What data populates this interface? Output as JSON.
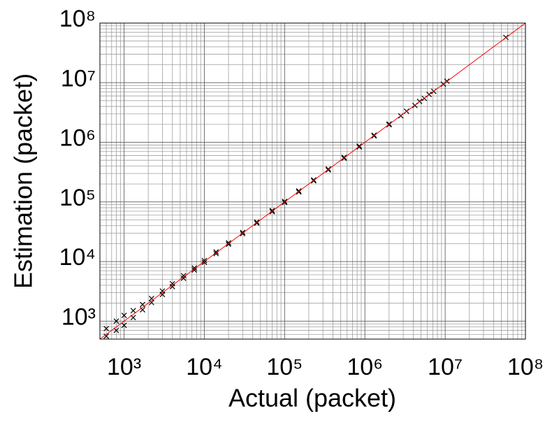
{
  "chart_data": {
    "type": "scatter",
    "log_x": true,
    "log_y": true,
    "grid": true,
    "minor_grid": true,
    "xlabel": "Actual (packet)",
    "ylabel": "Estimation (packet)",
    "xlim": [
      500,
      100000000
    ],
    "ylim": [
      500,
      100000000
    ],
    "xticks": [
      {
        "value": 1000,
        "label": "10³"
      },
      {
        "value": 10000,
        "label": "10⁴"
      },
      {
        "value": 100000,
        "label": "10⁵"
      },
      {
        "value": 1000000,
        "label": "10⁶"
      },
      {
        "value": 10000000,
        "label": "10⁷"
      },
      {
        "value": 100000000,
        "label": "10⁸"
      }
    ],
    "yticks": [
      {
        "value": 1000,
        "label": "10³"
      },
      {
        "value": 10000,
        "label": "10⁴"
      },
      {
        "value": 100000,
        "label": "10⁵"
      },
      {
        "value": 1000000,
        "label": "10⁶"
      },
      {
        "value": 10000000,
        "label": "10⁷"
      },
      {
        "value": 100000000,
        "label": "10⁸"
      }
    ],
    "color": "#000000",
    "marker": "x",
    "reference_line": {
      "color": "#ff0000"
    },
    "x": [
      600,
      600,
      800,
      800,
      1000,
      1000,
      1300,
      1300,
      1700,
      1700,
      2200,
      2200,
      3000,
      3000,
      4000,
      4000,
      5500,
      5500,
      7500,
      7500,
      10000,
      10000,
      14000,
      14000,
      20000,
      20000,
      30000,
      30000,
      45000,
      45000,
      70000,
      70000,
      100000,
      100000,
      150000,
      150000,
      230000,
      230000,
      350000,
      350000,
      550000,
      550000,
      850000,
      850000,
      1300000,
      1300000,
      2000000,
      2000000,
      2800000,
      3300000,
      4200000,
      4800000,
      5500000,
      6300000,
      7200000,
      9500000,
      10500000,
      57000000
    ],
    "y": [
      560,
      750,
      700,
      1000,
      850,
      1250,
      1150,
      1500,
      1550,
      1900,
      2050,
      2400,
      2800,
      3200,
      3800,
      4250,
      5250,
      5800,
      7200,
      7800,
      9700,
      10400,
      13600,
      14500,
      19500,
      20600,
      29300,
      30800,
      44000,
      46000,
      68500,
      71500,
      98000,
      102000,
      147000,
      153000,
      226000,
      234000,
      344000,
      356000,
      540000,
      560000,
      835000,
      865000,
      1280000,
      1320000,
      1970000,
      2030000,
      2780000,
      3320000,
      4150000,
      4850000,
      5450000,
      6350000,
      7150000,
      9450000,
      10600000,
      57500000
    ]
  }
}
